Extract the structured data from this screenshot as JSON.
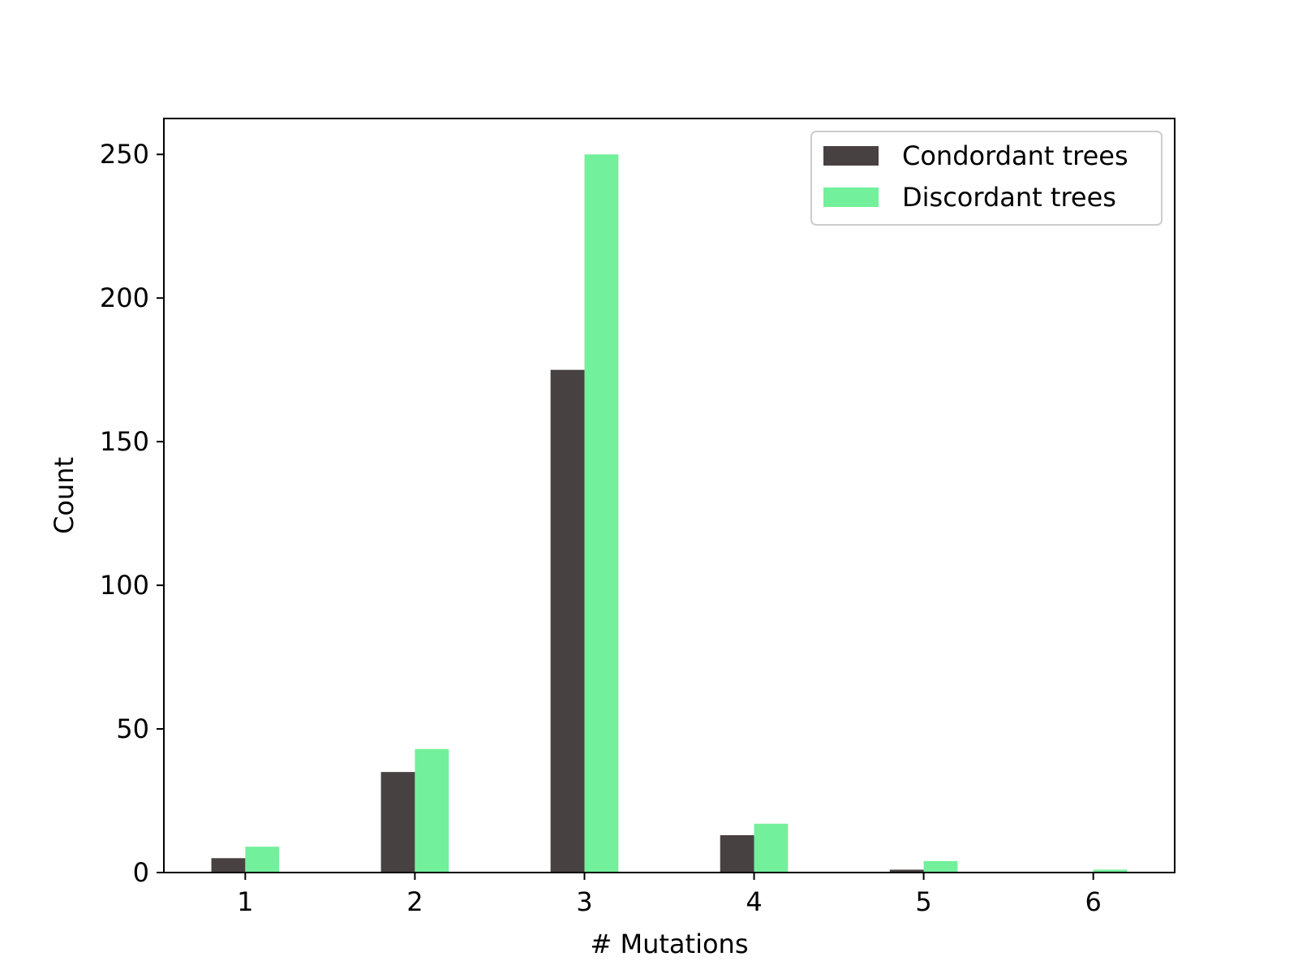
{
  "chart_data": {
    "type": "bar",
    "title": "",
    "xlabel": "# Mutations",
    "ylabel": "Count",
    "categories": [
      "1",
      "2",
      "3",
      "4",
      "5",
      "6"
    ],
    "x": [
      1,
      2,
      3,
      4,
      5,
      6
    ],
    "series": [
      {
        "name": "Condordant trees",
        "color": "#484142",
        "values": [
          5,
          35,
          175,
          13,
          1,
          0
        ]
      },
      {
        "name": "Discordant trees",
        "color": "#72f09b",
        "values": [
          9,
          43,
          250,
          17,
          4,
          1
        ]
      }
    ],
    "xlim": [
      0.52,
      6.48
    ],
    "ylim": [
      0,
      262.5
    ],
    "yticks": [
      0,
      50,
      100,
      150,
      200,
      250
    ],
    "grid": false,
    "legend_position": "top-right"
  }
}
